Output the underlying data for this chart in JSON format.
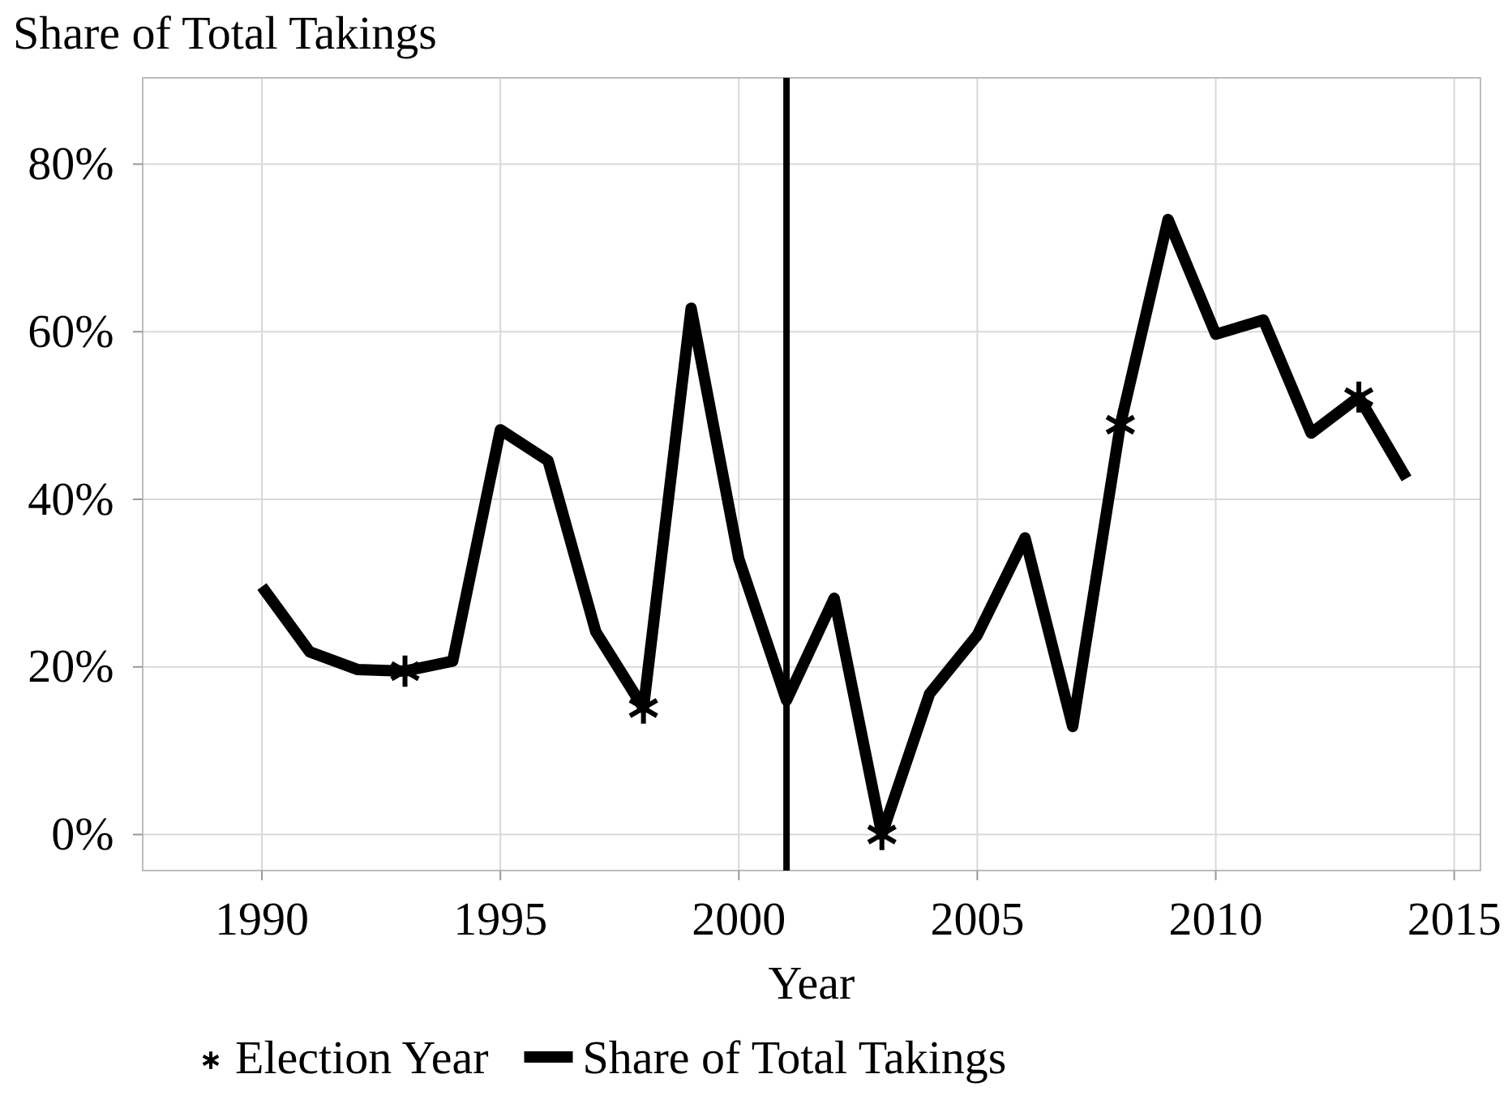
{
  "chart_data": {
    "type": "line",
    "title": "Share of Total Takings",
    "xlabel": "Year",
    "xlim": [
      1987.5,
      2015.55
    ],
    "xticks": [
      1990,
      1995,
      2000,
      2005,
      2010,
      2015
    ],
    "ylim": [
      -4.3,
      90.3
    ],
    "yticks": [
      {
        "value": 0,
        "label": "0%"
      },
      {
        "value": 20,
        "label": "20%"
      },
      {
        "value": 40,
        "label": "40%"
      },
      {
        "value": 60,
        "label": "60%"
      },
      {
        "value": 80,
        "label": "80%"
      }
    ],
    "grid": true,
    "legend": "bottom",
    "line_style": "solid",
    "marker": "none",
    "ref_lines": [
      {
        "axis": "x",
        "value": 2001,
        "label": null,
        "color": "#000000"
      }
    ],
    "series": [
      {
        "name": "Election Year",
        "type": "scatter",
        "marker": "cross",
        "color": "#000000",
        "x": [
          1993,
          1998,
          2003,
          2008,
          2013
        ],
        "values": [
          19.5,
          15.1,
          0,
          48.9,
          52.2
        ]
      },
      {
        "name": "Share of Total Takings",
        "color": "#000000",
        "x": [
          1990,
          1991,
          1992,
          1993,
          1994,
          1995,
          1996,
          1997,
          1998,
          1999,
          2000,
          2001,
          2002,
          2003,
          2004,
          2005,
          2006,
          2007,
          2008,
          2009,
          2010,
          2011,
          2012,
          2013,
          2014
        ],
        "values": [
          29.6,
          21.8,
          19.7,
          19.5,
          20.7,
          48.3,
          44.6,
          24.2,
          15.1,
          62.8,
          32.9,
          16.0,
          28.2,
          0,
          16.8,
          23.8,
          35.4,
          12.9,
          48.9,
          73.4,
          59.7,
          61.4,
          47.9,
          52.2,
          42.5
        ]
      }
    ]
  }
}
